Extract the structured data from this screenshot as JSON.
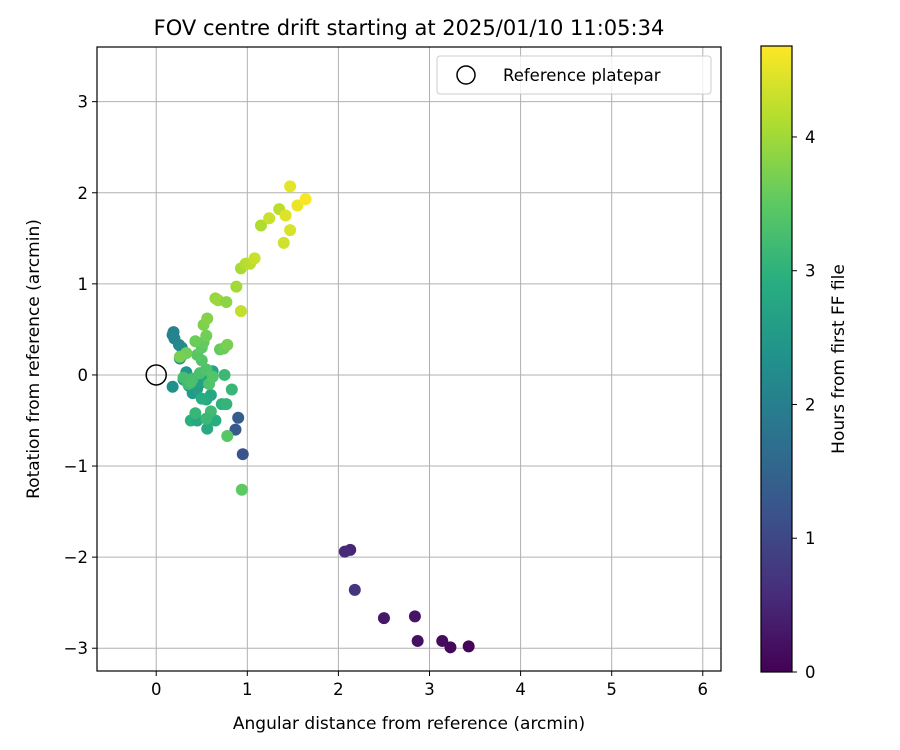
{
  "chart_data": {
    "type": "scatter",
    "title": "FOV centre drift starting at 2025/01/10 11:05:34",
    "xlabel": "Angular distance from reference (arcmin)",
    "ylabel": "Rotation from reference (arcmin)",
    "xlim": [
      -0.65,
      6.2
    ],
    "ylim": [
      -3.25,
      3.6
    ],
    "x_ticks": [
      0,
      1,
      2,
      3,
      4,
      5,
      6
    ],
    "y_ticks": [
      -3,
      -2,
      -1,
      0,
      1,
      2,
      3
    ],
    "x_tick_labels": [
      "0",
      "1",
      "2",
      "3",
      "4",
      "5",
      "6"
    ],
    "y_tick_labels": [
      "−3",
      "−2",
      "−1",
      "0",
      "1",
      "2",
      "3"
    ],
    "grid": true,
    "legend": {
      "placement": "top-right",
      "entries": [
        "Reference platepar"
      ]
    },
    "reference_point": {
      "x": 0,
      "y": 0
    },
    "colorbar": {
      "label": "Hours from first FF file",
      "range": [
        0,
        4.68
      ],
      "ticks": [
        0,
        1,
        2,
        3,
        4
      ],
      "tick_labels": [
        "0",
        "1",
        "2",
        "3",
        "4"
      ],
      "colormap": "viridis"
    },
    "points": [
      {
        "x": 3.43,
        "y": -2.98,
        "h": 0.05
      },
      {
        "x": 3.23,
        "y": -2.99,
        "h": 0.1
      },
      {
        "x": 3.14,
        "y": -2.92,
        "h": 0.15
      },
      {
        "x": 2.87,
        "y": -2.92,
        "h": 0.2
      },
      {
        "x": 2.84,
        "y": -2.65,
        "h": 0.25
      },
      {
        "x": 2.5,
        "y": -2.67,
        "h": 0.3
      },
      {
        "x": 2.18,
        "y": -2.36,
        "h": 0.7
      },
      {
        "x": 2.13,
        "y": -1.92,
        "h": 0.5
      },
      {
        "x": 2.07,
        "y": -1.94,
        "h": 0.55
      },
      {
        "x": 0.95,
        "y": -0.87,
        "h": 1.2
      },
      {
        "x": 0.87,
        "y": -0.6,
        "h": 1.3
      },
      {
        "x": 0.9,
        "y": -0.47,
        "h": 1.35
      },
      {
        "x": 0.18,
        "y": 0.44,
        "h": 2.0
      },
      {
        "x": 0.19,
        "y": 0.47,
        "h": 2.05
      },
      {
        "x": 0.2,
        "y": 0.4,
        "h": 2.1
      },
      {
        "x": 0.25,
        "y": 0.33,
        "h": 2.15
      },
      {
        "x": 0.28,
        "y": 0.3,
        "h": 2.2
      },
      {
        "x": 0.3,
        "y": 0.23,
        "h": 2.25
      },
      {
        "x": 0.26,
        "y": 0.18,
        "h": 2.3
      },
      {
        "x": 0.18,
        "y": -0.13,
        "h": 2.35
      },
      {
        "x": 0.33,
        "y": 0.03,
        "h": 2.4
      },
      {
        "x": 0.3,
        "y": -0.05,
        "h": 2.45
      },
      {
        "x": 0.36,
        "y": -0.12,
        "h": 2.5
      },
      {
        "x": 0.4,
        "y": -0.2,
        "h": 2.55
      },
      {
        "x": 0.45,
        "y": -0.15,
        "h": 2.6
      },
      {
        "x": 0.5,
        "y": -0.08,
        "h": 2.65
      },
      {
        "x": 0.53,
        "y": -0.02,
        "h": 2.7
      },
      {
        "x": 0.62,
        "y": 0.04,
        "h": 2.75
      },
      {
        "x": 0.6,
        "y": -0.22,
        "h": 2.8
      },
      {
        "x": 0.55,
        "y": -0.27,
        "h": 2.85
      },
      {
        "x": 0.5,
        "y": -0.26,
        "h": 2.9
      },
      {
        "x": 0.38,
        "y": -0.5,
        "h": 2.95
      },
      {
        "x": 0.45,
        "y": -0.5,
        "h": 2.8
      },
      {
        "x": 0.56,
        "y": -0.59,
        "h": 2.85
      },
      {
        "x": 0.65,
        "y": -0.5,
        "h": 2.9
      },
      {
        "x": 0.72,
        "y": -0.32,
        "h": 3.0
      },
      {
        "x": 0.77,
        "y": -0.32,
        "h": 3.05
      },
      {
        "x": 0.83,
        "y": -0.16,
        "h": 3.1
      },
      {
        "x": 0.75,
        "y": 0.0,
        "h": 3.15
      },
      {
        "x": 0.6,
        "y": -0.4,
        "h": 3.2
      },
      {
        "x": 0.55,
        "y": -0.48,
        "h": 3.15
      },
      {
        "x": 0.43,
        "y": -0.42,
        "h": 3.1
      },
      {
        "x": 0.35,
        "y": -0.1,
        "h": 3.2
      },
      {
        "x": 0.4,
        "y": -0.04,
        "h": 3.25
      },
      {
        "x": 0.48,
        "y": 0.02,
        "h": 3.3
      },
      {
        "x": 0.55,
        "y": 0.06,
        "h": 3.35
      },
      {
        "x": 0.5,
        "y": 0.16,
        "h": 3.4
      },
      {
        "x": 0.45,
        "y": 0.22,
        "h": 3.45
      },
      {
        "x": 0.5,
        "y": 0.3,
        "h": 3.5
      },
      {
        "x": 0.52,
        "y": 0.36,
        "h": 3.55
      },
      {
        "x": 0.43,
        "y": 0.37,
        "h": 3.6
      },
      {
        "x": 0.33,
        "y": 0.24,
        "h": 3.65
      },
      {
        "x": 0.26,
        "y": 0.2,
        "h": 3.7
      },
      {
        "x": 0.3,
        "y": -0.03,
        "h": 3.25
      },
      {
        "x": 0.38,
        "y": -0.08,
        "h": 3.3
      },
      {
        "x": 0.58,
        "y": -0.1,
        "h": 3.35
      },
      {
        "x": 0.62,
        "y": -0.02,
        "h": 3.4
      },
      {
        "x": 0.78,
        "y": -0.67,
        "h": 3.45
      },
      {
        "x": 0.94,
        "y": -1.26,
        "h": 3.5
      },
      {
        "x": 0.7,
        "y": 0.28,
        "h": 3.55
      },
      {
        "x": 0.74,
        "y": 0.29,
        "h": 3.6
      },
      {
        "x": 0.78,
        "y": 0.33,
        "h": 3.7
      },
      {
        "x": 0.55,
        "y": 0.43,
        "h": 3.65
      },
      {
        "x": 0.52,
        "y": 0.55,
        "h": 3.75
      },
      {
        "x": 0.56,
        "y": 0.62,
        "h": 3.8
      },
      {
        "x": 0.65,
        "y": 0.84,
        "h": 3.9
      },
      {
        "x": 0.68,
        "y": 0.82,
        "h": 3.95
      },
      {
        "x": 0.77,
        "y": 0.8,
        "h": 3.85
      },
      {
        "x": 0.88,
        "y": 0.97,
        "h": 4.0
      },
      {
        "x": 0.93,
        "y": 1.17,
        "h": 4.05
      },
      {
        "x": 0.98,
        "y": 1.22,
        "h": 4.15
      },
      {
        "x": 1.03,
        "y": 1.22,
        "h": 4.2
      },
      {
        "x": 1.08,
        "y": 1.28,
        "h": 4.3
      },
      {
        "x": 0.93,
        "y": 0.7,
        "h": 4.25
      },
      {
        "x": 1.15,
        "y": 1.64,
        "h": 4.1
      },
      {
        "x": 1.24,
        "y": 1.72,
        "h": 4.3
      },
      {
        "x": 1.35,
        "y": 1.82,
        "h": 4.2
      },
      {
        "x": 1.4,
        "y": 1.45,
        "h": 4.35
      },
      {
        "x": 1.47,
        "y": 1.59,
        "h": 4.4
      },
      {
        "x": 1.42,
        "y": 1.75,
        "h": 4.45
      },
      {
        "x": 1.47,
        "y": 2.07,
        "h": 4.5
      },
      {
        "x": 1.55,
        "y": 1.86,
        "h": 4.55
      },
      {
        "x": 1.64,
        "y": 1.93,
        "h": 4.65
      }
    ]
  }
}
